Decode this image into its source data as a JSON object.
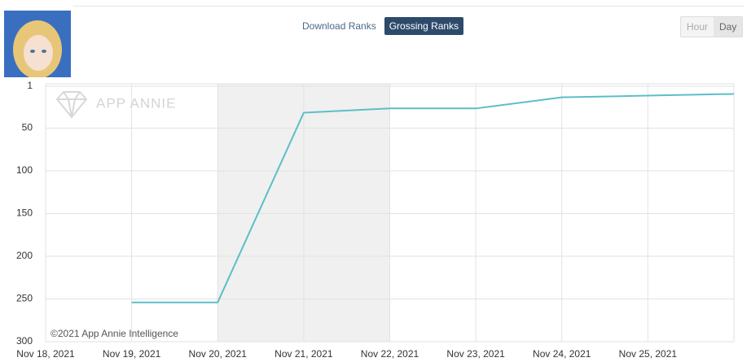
{
  "ui": {
    "tabs": [
      "Download Ranks",
      "Grossing Ranks"
    ],
    "active_tab": 1,
    "granularity": [
      "Hour",
      "Day"
    ],
    "active_granularity": 1
  },
  "chart_data": {
    "type": "line",
    "annotations": [
      "APP ANNIE",
      "©2021 App Annie Intelligence"
    ],
    "categories": [
      "Nov 18, 2021",
      "Nov 19, 2021",
      "Nov 20, 2021",
      "Nov 21, 2021",
      "Nov 22, 2021",
      "Nov 23, 2021",
      "Nov 24, 2021",
      "Nov 25, 2021",
      null
    ],
    "series": [
      {
        "name": "Grossing Rank",
        "color": "#5bbfc6",
        "values": [
          null,
          254,
          254,
          32,
          27,
          27,
          14,
          12,
          10
        ]
      }
    ],
    "ylim": [
      1,
      300
    ],
    "yticks": [
      1,
      50,
      100,
      150,
      200,
      250,
      300
    ],
    "inverted": true,
    "grid": true
  }
}
